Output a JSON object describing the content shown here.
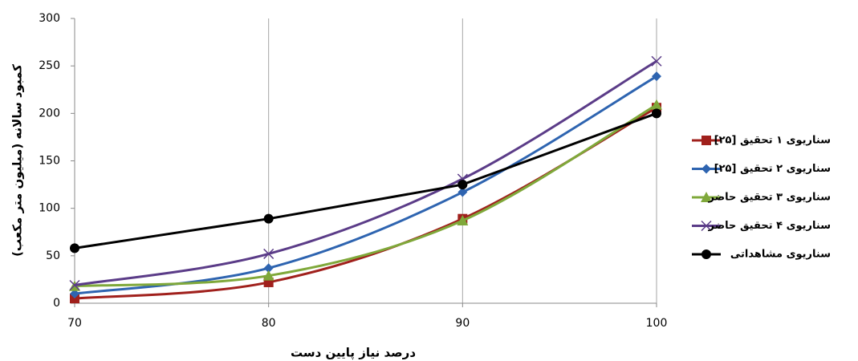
{
  "chart_data": {
    "type": "line",
    "x_label": "درصد نیاز پایین دست",
    "y_label": "کمبود سالانه (میلیون متر مکعب)",
    "x": [
      70,
      80,
      90,
      100
    ],
    "xlim": [
      70,
      100
    ],
    "xticks": [
      70,
      80,
      90,
      100
    ],
    "ylim": [
      0,
      300
    ],
    "yticks": [
      0,
      50,
      100,
      150,
      200,
      250,
      300
    ],
    "grid": "x",
    "legend": "right",
    "series": [
      {
        "name": "سناریوی ۱ تحقیق [۲۵]",
        "color": "#a0201c",
        "marker": "square",
        "smooth": true,
        "values": [
          5,
          22,
          89,
          206
        ]
      },
      {
        "name": "سناریوی ۲ تحقیق [۲۵]",
        "color": "#2e64b0",
        "marker": "diamond",
        "smooth": true,
        "values": [
          10,
          37,
          117,
          239
        ]
      },
      {
        "name": "سناریوی ۳ تحقیق حاضر",
        "color": "#7fa83a",
        "marker": "triangle",
        "smooth": true,
        "values": [
          18,
          29,
          87,
          209
        ]
      },
      {
        "name": "سناریوی ۴ تحقیق حاضر",
        "color": "#5b3c88",
        "marker": "x",
        "smooth": true,
        "values": [
          19,
          52,
          131,
          255
        ]
      },
      {
        "name": "سناریوی مشاهداتی",
        "color": "#000000",
        "marker": "circle",
        "smooth": false,
        "values": [
          58,
          89,
          125,
          200
        ]
      }
    ]
  }
}
